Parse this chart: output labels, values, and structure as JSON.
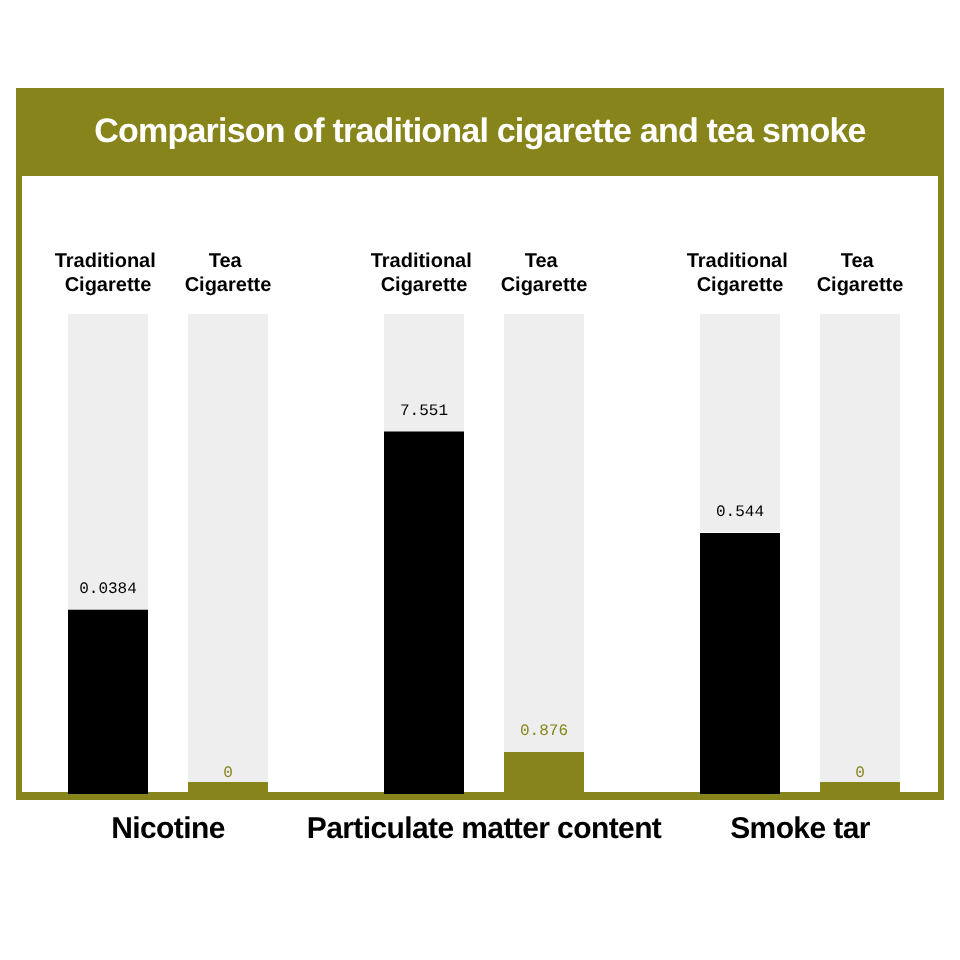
{
  "chart_data": [
    {
      "type": "bar",
      "title": "Comparison of traditional cigarette and tea smoke",
      "categories": [
        "Traditional Cigarette",
        "Tea Cigarette"
      ],
      "values": [
        0.0384,
        0
      ],
      "colors": [
        "#000000",
        "#86841a"
      ],
      "data_labels": true,
      "xlabel": "Nicotine",
      "ylim": [
        0,
        0.1
      ],
      "tick_labels": "x"
    },
    {
      "type": "bar",
      "categories": [
        "Traditional Cigarette",
        "Tea Cigarette"
      ],
      "values": [
        7.551,
        0.876
      ],
      "colors": [
        "#000000",
        "#86841a"
      ],
      "data_labels": true,
      "xlabel": "Particulate matter content",
      "ylim": [
        0,
        10
      ],
      "tick_labels": "x"
    },
    {
      "type": "bar",
      "categories": [
        "Traditional Cigarette",
        "Tea Cigarette"
      ],
      "values": [
        0.544,
        0
      ],
      "colors": [
        "#000000",
        "#86841a"
      ],
      "data_labels": true,
      "xlabel": "Smoke tar",
      "ylim": [
        0,
        1
      ],
      "tick_labels": "x"
    }
  ]
}
